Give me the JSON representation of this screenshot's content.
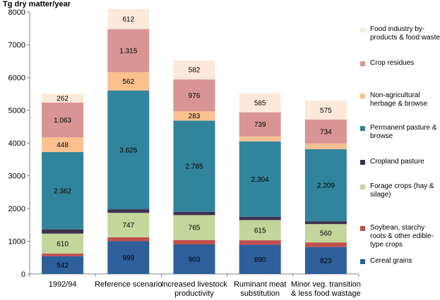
{
  "chart_data": {
    "type": "bar",
    "stacked": true,
    "ylabel": "Tg dry matter/year",
    "ylim": [
      0,
      8000
    ],
    "yticks": [
      0,
      1000,
      2000,
      3000,
      4000,
      5000,
      6000,
      7000,
      8000
    ],
    "categories": [
      [
        "1992/94"
      ],
      [
        "Reference scenario"
      ],
      [
        "Increased livestock",
        "productivity"
      ],
      [
        "Ruminant meat",
        "substitution"
      ],
      [
        "Minor veg. transition",
        "& less food wastage"
      ]
    ],
    "series": [
      {
        "name": "Cereal grains",
        "color": "#2e5f9b",
        "values": [
          542,
          999,
          903,
          890,
          823
        ],
        "labels": [
          "542",
          "999",
          "903",
          "890",
          "823"
        ]
      },
      {
        "name": "Soybean, starchy roots & other edible-type crops",
        "color": "#c0504d",
        "values": [
          80,
          120,
          130,
          140,
          140
        ],
        "labels": [
          null,
          null,
          null,
          null,
          null
        ]
      },
      {
        "name": "Forage crops (hay & silage)",
        "color": "#c3d69b",
        "values": [
          610,
          747,
          765,
          615,
          560
        ],
        "labels": [
          "610",
          "747",
          "765",
          "615",
          "560"
        ]
      },
      {
        "name": "Cropland pasture",
        "color": "#3f3151",
        "values": [
          130,
          110,
          100,
          100,
          80
        ],
        "labels": [
          null,
          null,
          null,
          null,
          null
        ]
      },
      {
        "name": "Permanent pasture & browse",
        "color": "#31849b",
        "values": [
          2362,
          3625,
          2785,
          2304,
          2209
        ],
        "labels": [
          "2.362",
          "3.625",
          "2.785",
          "2.304",
          "2.209"
        ]
      },
      {
        "name": "Non-agricultural herbage & browse",
        "color": "#fac090",
        "values": [
          448,
          562,
          283,
          150,
          170
        ],
        "labels": [
          "448",
          "562",
          "283",
          null,
          null
        ]
      },
      {
        "name": "Crop residues",
        "color": "#d99594",
        "values": [
          1063,
          1315,
          976,
          739,
          734
        ],
        "labels": [
          "1.063",
          "1.315",
          "976",
          "739",
          "734"
        ]
      },
      {
        "name": "Food industry by-products & food waste",
        "color": "#fde9d9",
        "values": [
          262,
          612,
          582,
          585,
          575
        ],
        "labels": [
          "262",
          "612",
          "582",
          "585",
          "575"
        ]
      }
    ]
  }
}
